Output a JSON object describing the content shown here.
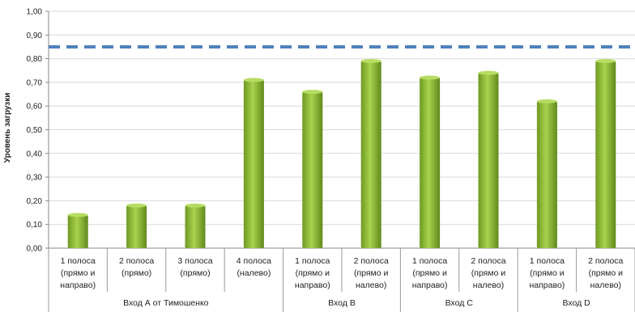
{
  "chart_data": {
    "type": "bar",
    "ylabel": "Уровень загрузки",
    "ylim": [
      0,
      1
    ],
    "ytick_labels": [
      "0,00",
      "0,10",
      "0,20",
      "0,30",
      "0,40",
      "0,50",
      "0,60",
      "0,70",
      "0,80",
      "0,90",
      "1,00"
    ],
    "categories": [
      [
        "1 полоса",
        "(прямо и",
        "направо)"
      ],
      [
        "2 полоса",
        "(прямо)"
      ],
      [
        "3 полоса",
        "(прямо)"
      ],
      [
        "4 полоса",
        "(налево)"
      ],
      [
        "1 полоса",
        "(прямо и",
        "направо)"
      ],
      [
        "2 полоса",
        "(прямо и",
        "налево)"
      ],
      [
        "1 полоса",
        "(прямо и",
        "направо)"
      ],
      [
        "2 полоса",
        "(прямо и",
        "налево)"
      ],
      [
        "1 полоса",
        "(прямо и",
        "направо)"
      ],
      [
        "2 полоса",
        "(прямо и",
        "налево)"
      ]
    ],
    "groups": [
      {
        "label": "Вход А от Тимошенко",
        "count": 4
      },
      {
        "label": "Вход B",
        "count": 2
      },
      {
        "label": "Вход C",
        "count": 2
      },
      {
        "label": "Вход D",
        "count": 2
      }
    ],
    "values": [
      0.14,
      0.18,
      0.18,
      0.71,
      0.66,
      0.79,
      0.72,
      0.74,
      0.62,
      0.79
    ],
    "threshold": 0.85,
    "bar_color": "#8bb832",
    "threshold_color": "#4f81bd",
    "grid": true
  }
}
